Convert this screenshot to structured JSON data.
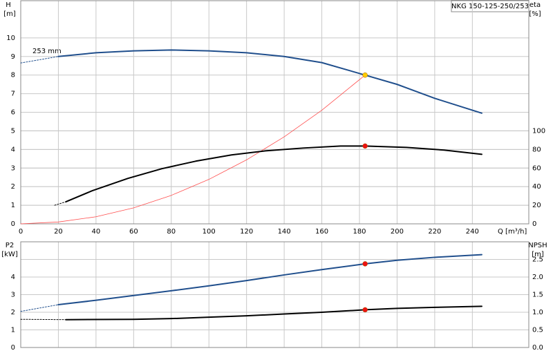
{
  "chart_data": [
    {
      "type": "line",
      "label_box": "NKG 150-125-250/253",
      "y_label": [
        "H",
        "[m]"
      ],
      "y2_label": [
        "eta",
        "[%]"
      ],
      "x_label": "Q [m³/h]",
      "annotation": "253 mm",
      "xlim": [
        0,
        270
      ],
      "xticks": [
        0,
        20,
        40,
        60,
        80,
        100,
        120,
        140,
        160,
        180,
        200,
        220,
        240
      ],
      "ylim": [
        0,
        12
      ],
      "yticks": [
        0,
        1,
        2,
        3,
        4,
        5,
        6,
        7,
        8,
        9,
        10
      ],
      "y2lim": [
        0,
        240
      ],
      "y2ticks": [
        0,
        20,
        40,
        60,
        80,
        100
      ],
      "grid": true,
      "series": [
        {
          "color": "#1f4e8c",
          "dash": true,
          "x": [
            0,
            20
          ],
          "values": [
            8.65,
            9.0
          ]
        },
        {
          "color": "#1f4e8c",
          "x": [
            20,
            40,
            60,
            80,
            100,
            120,
            140,
            160,
            183,
            200,
            220,
            245
          ],
          "values": [
            9.0,
            9.2,
            9.3,
            9.35,
            9.3,
            9.2,
            9.0,
            8.67,
            8.0,
            7.5,
            6.75,
            5.95
          ]
        },
        {
          "color": "#ff4d4d",
          "thin": true,
          "x": [
            0,
            20,
            40,
            60,
            80,
            100,
            120,
            140,
            160,
            183
          ],
          "values": [
            0,
            0.1,
            0.38,
            0.86,
            1.53,
            2.39,
            3.44,
            4.68,
            6.11,
            8.0
          ]
        },
        {
          "color": "#000000",
          "dash": true,
          "axis": "y2",
          "x": [
            18,
            24
          ],
          "values": [
            20,
            23.7
          ]
        },
        {
          "color": "#000000",
          "axis": "y2",
          "x": [
            24,
            38,
            57,
            75,
            93,
            112,
            130,
            150,
            170,
            183,
            205,
            225,
            245
          ],
          "values": [
            23.7,
            35.6,
            48.9,
            59.3,
            67.4,
            74.1,
            78.5,
            81.5,
            83.7,
            83.7,
            82.2,
            79.3,
            74.8
          ]
        },
        {
          "color": "#ffcc00",
          "marker": true,
          "x": [
            183
          ],
          "values": [
            8.0
          ]
        },
        {
          "color": "#ee1111",
          "marker": true,
          "axis": "y2",
          "x": [
            183
          ],
          "values": [
            83.7
          ]
        }
      ]
    },
    {
      "type": "line",
      "y_label": [
        "P2",
        "[kW]"
      ],
      "y2_label": [
        "NPSH",
        "[m]"
      ],
      "xlim": [
        0,
        270
      ],
      "ylim": [
        0,
        6
      ],
      "yticks": [
        0,
        1,
        2,
        3,
        4
      ],
      "y2lim": [
        0,
        3
      ],
      "y2ticks": [
        {
          "value": 0,
          "label": "0.0"
        },
        0.5,
        {
          "value": 1,
          "label": "1.0"
        },
        1.5,
        {
          "value": 2,
          "label": "2.0"
        },
        2.5
      ],
      "grid": true,
      "series": [
        {
          "color": "#1f4e8c",
          "dash": true,
          "x": [
            0,
            20
          ],
          "values": [
            2.05,
            2.43
          ]
        },
        {
          "color": "#1f4e8c",
          "x": [
            20,
            40,
            60,
            80,
            100,
            120,
            140,
            160,
            183,
            200,
            220,
            245
          ],
          "values": [
            2.43,
            2.68,
            2.95,
            3.22,
            3.5,
            3.8,
            4.12,
            4.42,
            4.75,
            4.95,
            5.12,
            5.27
          ]
        },
        {
          "color": "#000000",
          "dash": true,
          "axis": "y2",
          "x": [
            0,
            24
          ],
          "values": [
            0.8,
            0.79
          ]
        },
        {
          "color": "#000000",
          "axis": "y2",
          "x": [
            24,
            60,
            80,
            100,
            120,
            140,
            160,
            183,
            200,
            220,
            245
          ],
          "values": [
            0.79,
            0.8,
            0.82,
            0.86,
            0.9,
            0.95,
            1.0,
            1.07,
            1.11,
            1.14,
            1.17
          ]
        },
        {
          "color": "#ee1111",
          "marker": true,
          "x": [
            183
          ],
          "values": [
            4.75
          ]
        },
        {
          "color": "#ee1111",
          "marker": true,
          "axis": "y2",
          "x": [
            183
          ],
          "values": [
            1.07
          ]
        }
      ]
    }
  ]
}
